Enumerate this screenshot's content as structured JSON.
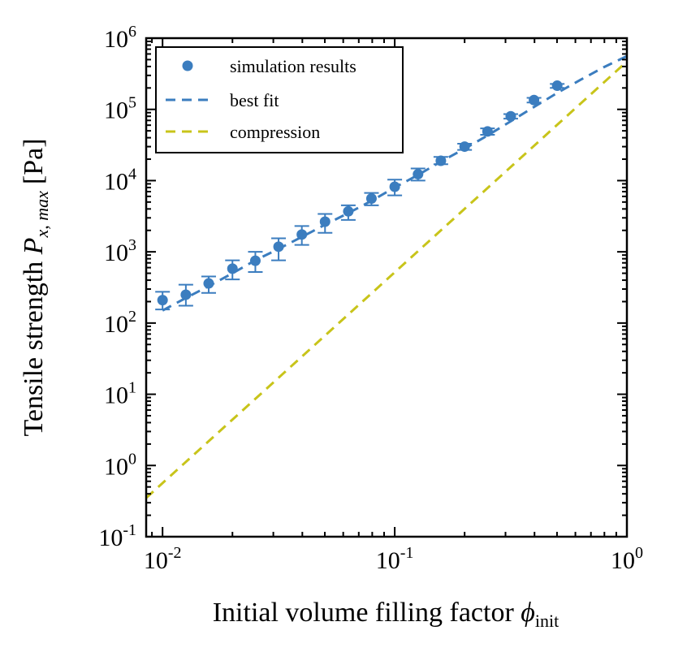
{
  "chart_data": {
    "type": "scatter",
    "xscale": "log",
    "yscale": "log",
    "xlim": [
      0.0085,
      1.0
    ],
    "ylim": [
      0.1,
      1000000
    ],
    "xlabel": "Initial volume filling factor",
    "xlabel_symbol": "ϕ",
    "xlabel_sub": "init",
    "ylabel": "Tensile strength",
    "ylabel_symbol": "P",
    "ylabel_sub": "x, max",
    "ylabel_unit": "[Pa]",
    "x_ticks": [
      {
        "value": 0.01,
        "base": "10",
        "exp": "-2"
      },
      {
        "value": 0.1,
        "base": "10",
        "exp": "-1"
      },
      {
        "value": 1.0,
        "base": "10",
        "exp": "0"
      }
    ],
    "y_ticks": [
      {
        "value": 0.1,
        "base": "10",
        "exp": "-1"
      },
      {
        "value": 1,
        "base": "10",
        "exp": "0"
      },
      {
        "value": 10,
        "base": "10",
        "exp": "1"
      },
      {
        "value": 100,
        "base": "10",
        "exp": "2"
      },
      {
        "value": 1000,
        "base": "10",
        "exp": "3"
      },
      {
        "value": 10000,
        "base": "10",
        "exp": "4"
      },
      {
        "value": 100000,
        "base": "10",
        "exp": "5"
      },
      {
        "value": 1000000,
        "base": "10",
        "exp": "6"
      }
    ],
    "legend": {
      "position": "upper-left",
      "entries": [
        {
          "label": "simulation results",
          "style": "marker",
          "color": "#3b7dbf"
        },
        {
          "label": "best fit",
          "style": "dashed",
          "color": "#3b7dbf"
        },
        {
          "label": "compression",
          "style": "dashed",
          "color": "#c8c41a"
        }
      ]
    },
    "series": [
      {
        "name": "simulation results",
        "color": "#3b7dbf",
        "points": [
          {
            "x": 0.01,
            "y": 210,
            "ylo": 155,
            "yhi": 275
          },
          {
            "x": 0.0126,
            "y": 250,
            "ylo": 175,
            "yhi": 345
          },
          {
            "x": 0.0158,
            "y": 360,
            "ylo": 265,
            "yhi": 450
          },
          {
            "x": 0.02,
            "y": 580,
            "ylo": 410,
            "yhi": 760
          },
          {
            "x": 0.0251,
            "y": 750,
            "ylo": 520,
            "yhi": 1000
          },
          {
            "x": 0.0316,
            "y": 1180,
            "ylo": 760,
            "yhi": 1550
          },
          {
            "x": 0.0398,
            "y": 1750,
            "ylo": 1250,
            "yhi": 2300
          },
          {
            "x": 0.0501,
            "y": 2650,
            "ylo": 1850,
            "yhi": 3400
          },
          {
            "x": 0.0631,
            "y": 3700,
            "ylo": 2800,
            "yhi": 4500
          },
          {
            "x": 0.0794,
            "y": 5600,
            "ylo": 4500,
            "yhi": 6700
          },
          {
            "x": 0.1,
            "y": 8200,
            "ylo": 6200,
            "yhi": 10300
          },
          {
            "x": 0.126,
            "y": 12300,
            "ylo": 10000,
            "yhi": 14800
          },
          {
            "x": 0.158,
            "y": 19000,
            "ylo": 17000,
            "yhi": 21500
          },
          {
            "x": 0.2,
            "y": 30000,
            "ylo": 27000,
            "yhi": 33000
          },
          {
            "x": 0.251,
            "y": 49000,
            "ylo": 44000,
            "yhi": 54000
          },
          {
            "x": 0.316,
            "y": 80000,
            "ylo": 74000,
            "yhi": 86000
          },
          {
            "x": 0.398,
            "y": 135000,
            "ylo": 125000,
            "yhi": 145000
          },
          {
            "x": 0.501,
            "y": 215000,
            "ylo": 200000,
            "yhi": 228000
          }
        ]
      },
      {
        "name": "best fit",
        "color": "#3b7dbf",
        "x": [
          0.01,
          0.0126,
          0.0158,
          0.02,
          0.0251,
          0.0316,
          0.0398,
          0.0501,
          0.0631,
          0.0794,
          0.1,
          0.126,
          0.158,
          0.2,
          0.251,
          0.316,
          0.398,
          0.501,
          0.631,
          0.794,
          1.0
        ],
        "y": [
          150,
          225,
          330,
          500,
          760,
          1100,
          1620,
          2400,
          3500,
          5200,
          8000,
          12000,
          18500,
          28000,
          43000,
          68000,
          108000,
          170000,
          260000,
          390000,
          560000
        ]
      },
      {
        "name": "compression",
        "color": "#c8c41a",
        "x": [
          0.0085,
          1.0
        ],
        "y": [
          0.35,
          470000
        ]
      }
    ]
  }
}
